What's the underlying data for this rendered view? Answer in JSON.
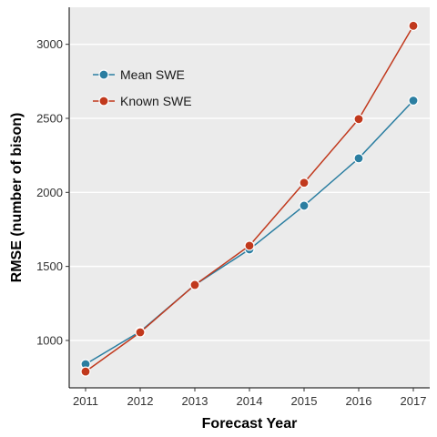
{
  "chart_data": {
    "type": "line",
    "title": "",
    "xlabel": "Forecast Year",
    "ylabel": "RMSE (number of bison)",
    "x": [
      2011,
      2012,
      2013,
      2014,
      2015,
      2016,
      2017
    ],
    "series": [
      {
        "name": "Mean SWE",
        "color": "#2b7ea1",
        "values": [
          840,
          1060,
          1375,
          1615,
          1910,
          2230,
          2620
        ]
      },
      {
        "name": "Known SWE",
        "color": "#c1391d",
        "values": [
          790,
          1055,
          1375,
          1640,
          2065,
          2495,
          3125
        ]
      }
    ],
    "xlim": [
      2010.7,
      2017.3
    ],
    "ylim": [
      680,
      3250
    ],
    "yticks": [
      1000,
      1500,
      2000,
      2500,
      3000
    ],
    "grid": true,
    "legend_position": "top-left"
  }
}
